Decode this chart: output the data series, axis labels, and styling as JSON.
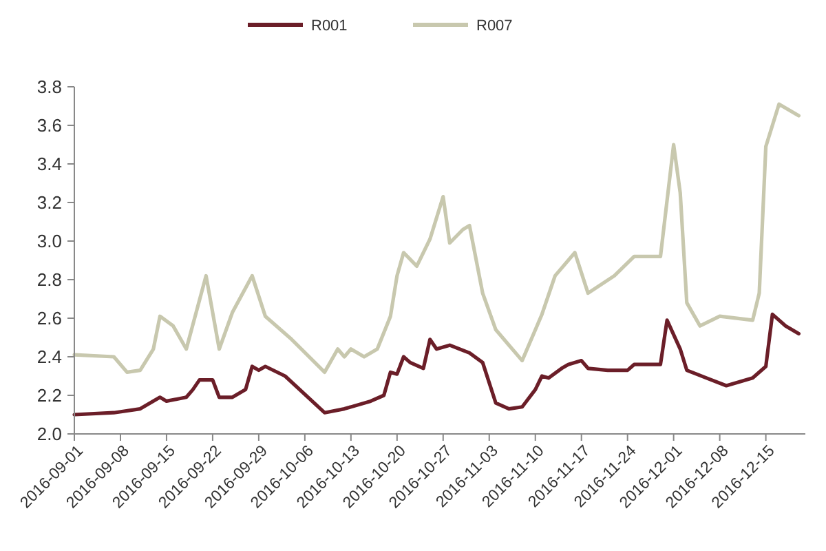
{
  "chart_data": {
    "type": "line",
    "legend": "top",
    "marker": "none",
    "line_style": "solid",
    "grid": false,
    "xlim": [
      "2016-09-01",
      "2016-12-21"
    ],
    "xticks": [
      "2016-09-01",
      "2016-09-08",
      "2016-09-15",
      "2016-09-22",
      "2016-09-29",
      "2016-10-06",
      "2016-10-13",
      "2016-10-20",
      "2016-10-27",
      "2016-11-03",
      "2016-11-10",
      "2016-11-17",
      "2016-11-24",
      "2016-12-01",
      "2016-12-08",
      "2016-12-15"
    ],
    "ylim": [
      2,
      3.8
    ],
    "yticks": [
      {
        "value": 2,
        "label": "2.0"
      },
      2.2,
      2.4,
      2.6,
      2.8,
      {
        "value": 3,
        "label": "3.0"
      },
      3.2,
      3.4,
      3.6,
      3.8
    ],
    "series": [
      {
        "name": "R001",
        "color": "#6b1e28",
        "x": [
          "2016-09-01",
          "2016-09-07",
          "2016-09-11",
          "2016-09-14",
          "2016-09-15",
          "2016-09-18",
          "2016-09-19",
          "2016-09-20",
          "2016-09-22",
          "2016-09-23",
          "2016-09-25",
          "2016-09-27",
          "2016-09-28",
          "2016-09-29",
          "2016-09-30",
          "2016-10-03",
          "2016-10-09",
          "2016-10-12",
          "2016-10-16",
          "2016-10-18",
          "2016-10-19",
          "2016-10-20",
          "2016-10-21",
          "2016-10-22",
          "2016-10-24",
          "2016-10-25",
          "2016-10-26",
          "2016-10-28",
          "2016-10-31",
          "2016-11-02",
          "2016-11-04",
          "2016-11-06",
          "2016-11-08",
          "2016-11-10",
          "2016-11-11",
          "2016-11-12",
          "2016-11-14",
          "2016-11-15",
          "2016-11-17",
          "2016-11-18",
          "2016-11-21",
          "2016-11-24",
          "2016-11-25",
          "2016-11-29",
          "2016-11-30",
          "2016-12-02",
          "2016-12-03",
          "2016-12-06",
          "2016-12-09",
          "2016-12-13",
          "2016-12-15",
          "2016-12-16",
          "2016-12-18",
          "2016-12-20"
        ],
        "values": [
          2.1,
          2.11,
          2.13,
          2.19,
          2.17,
          2.19,
          2.23,
          2.28,
          2.28,
          2.19,
          2.19,
          2.23,
          2.35,
          2.33,
          2.35,
          2.3,
          2.11,
          2.13,
          2.17,
          2.2,
          2.32,
          2.31,
          2.4,
          2.37,
          2.34,
          2.49,
          2.44,
          2.46,
          2.42,
          2.37,
          2.16,
          2.13,
          2.14,
          2.23,
          2.3,
          2.29,
          2.34,
          2.36,
          2.38,
          2.34,
          2.33,
          2.33,
          2.36,
          2.36,
          2.59,
          2.44,
          2.33,
          2.29,
          2.25,
          2.29,
          2.35,
          2.62,
          2.56,
          2.52
        ]
      },
      {
        "name": "R007",
        "color": "#c8c8ae",
        "x": [
          "2016-09-01",
          "2016-09-07",
          "2016-09-09",
          "2016-09-11",
          "2016-09-13",
          "2016-09-14",
          "2016-09-16",
          "2016-09-18",
          "2016-09-21",
          "2016-09-23",
          "2016-09-25",
          "2016-09-28",
          "2016-09-30",
          "2016-10-04",
          "2016-10-09",
          "2016-10-11",
          "2016-10-12",
          "2016-10-13",
          "2016-10-15",
          "2016-10-17",
          "2016-10-19",
          "2016-10-20",
          "2016-10-21",
          "2016-10-23",
          "2016-10-25",
          "2016-10-27",
          "2016-10-28",
          "2016-10-30",
          "2016-10-31",
          "2016-11-02",
          "2016-11-04",
          "2016-11-06",
          "2016-11-08",
          "2016-11-11",
          "2016-11-13",
          "2016-11-16",
          "2016-11-18",
          "2016-11-22",
          "2016-11-25",
          "2016-11-29",
          "2016-12-01",
          "2016-12-02",
          "2016-12-03",
          "2016-12-05",
          "2016-12-08",
          "2016-12-13",
          "2016-12-14",
          "2016-12-15",
          "2016-12-17",
          "2016-12-20"
        ],
        "values": [
          2.41,
          2.4,
          2.32,
          2.33,
          2.44,
          2.61,
          2.56,
          2.44,
          2.82,
          2.44,
          2.63,
          2.82,
          2.61,
          2.49,
          2.32,
          2.44,
          2.4,
          2.44,
          2.4,
          2.44,
          2.61,
          2.82,
          2.94,
          2.87,
          3.01,
          3.23,
          2.99,
          3.06,
          3.08,
          2.73,
          2.54,
          2.46,
          2.38,
          2.62,
          2.82,
          2.94,
          2.73,
          2.82,
          2.92,
          2.92,
          3.5,
          3.25,
          2.68,
          2.56,
          2.61,
          2.59,
          2.73,
          3.49,
          3.71,
          3.65
        ]
      }
    ]
  }
}
